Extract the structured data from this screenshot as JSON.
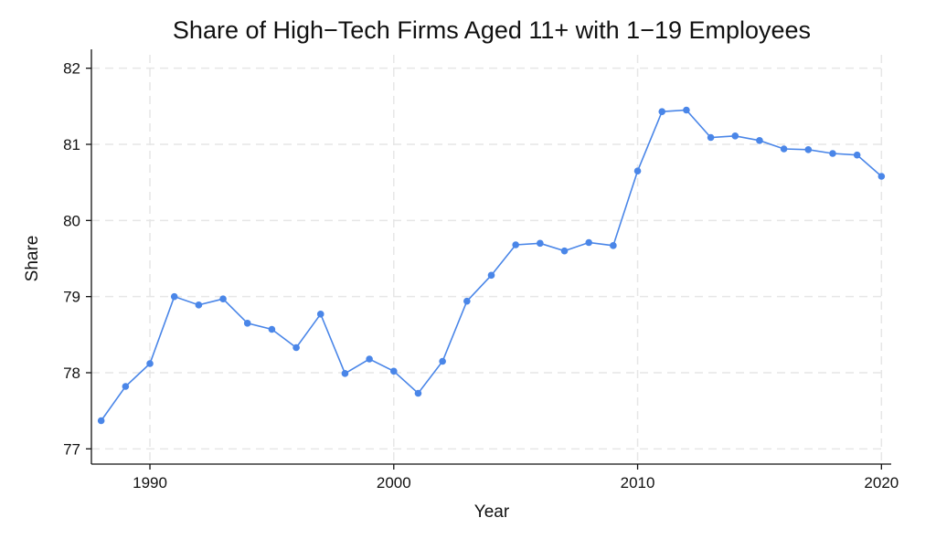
{
  "chart_data": {
    "type": "line",
    "title": "Share of High−Tech Firms Aged 11+ with 1−19 Employees",
    "xlabel": "Year",
    "ylabel": "Share",
    "xlim": [
      1987.6,
      2020.4
    ],
    "ylim": [
      76.8,
      82.2
    ],
    "xticks": [
      1990,
      2000,
      2010,
      2020
    ],
    "yticks": [
      77,
      78,
      79,
      80,
      81,
      82
    ],
    "grid": true,
    "color": "#4a86e8",
    "series": [
      {
        "x": [
          1988,
          1989,
          1990,
          1991,
          1992,
          1993,
          1994,
          1995,
          1996,
          1997,
          1998,
          1999,
          2000,
          2001,
          2002,
          2003,
          2004,
          2005,
          2006,
          2007,
          2008,
          2009,
          2010,
          2011,
          2012,
          2013,
          2014,
          2015,
          2016,
          2017,
          2018,
          2019,
          2020
        ],
        "values": [
          77.37,
          77.82,
          78.12,
          79.0,
          78.89,
          78.97,
          78.65,
          78.57,
          78.33,
          78.77,
          77.99,
          78.18,
          78.02,
          77.73,
          78.15,
          78.94,
          79.28,
          79.68,
          79.7,
          79.6,
          79.71,
          79.67,
          80.65,
          81.43,
          81.45,
          81.09,
          81.11,
          81.05,
          80.94,
          80.93,
          80.88,
          80.86,
          80.58
        ]
      }
    ]
  }
}
